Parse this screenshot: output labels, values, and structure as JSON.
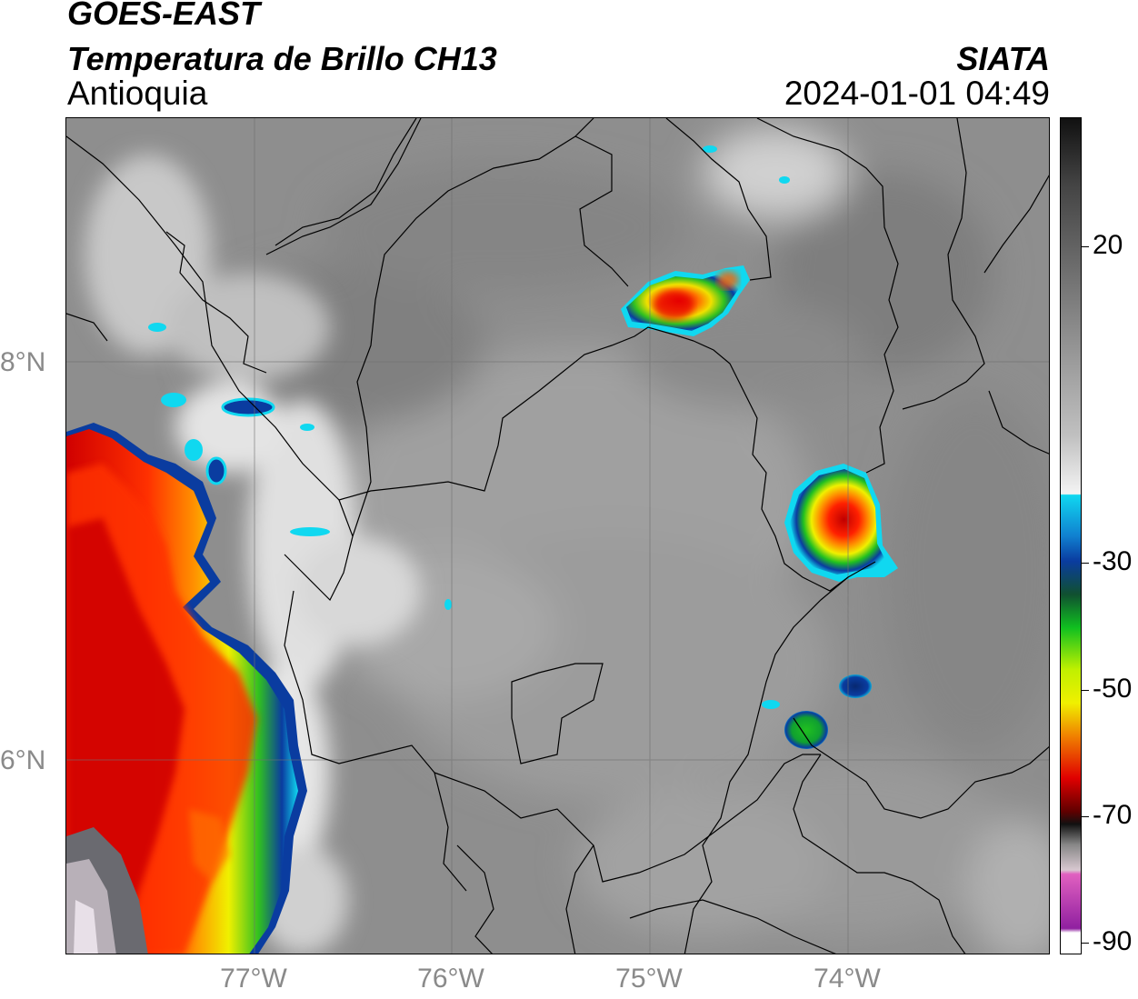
{
  "header": {
    "line1": "GOES-EAST",
    "line2": "Temperatura de Brillo CH13",
    "line3": "Antioquia",
    "agency": "SIATA",
    "datetime": "2024-01-01 04:49"
  },
  "axes": {
    "lon_labels": [
      "77°W",
      "76°W",
      "75°W",
      "74°W"
    ],
    "lat_labels": [
      "8°N",
      "6°N"
    ]
  },
  "colorbar": {
    "tick_labels": [
      "20",
      "-30",
      "-50",
      "-70",
      "-90"
    ],
    "colors": {
      "black": "#111111",
      "grey_mid": "#8a8a8a",
      "white": "#f4f4f4",
      "cyan": "#10d8f0",
      "blue": "#0a3ca0",
      "green": "#10c020",
      "yellow": "#f0f000",
      "orange": "#f08000",
      "red": "#e00000",
      "dark_red": "#600000",
      "pink": "#e060c0",
      "purple": "#9020a0"
    }
  }
}
